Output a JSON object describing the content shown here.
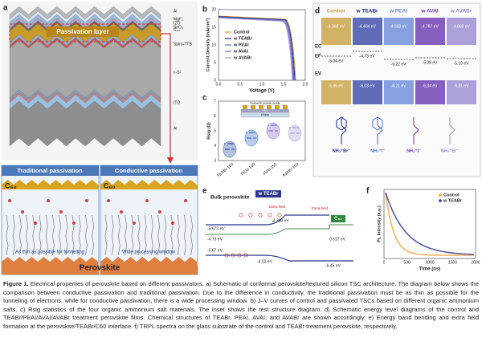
{
  "figure": {
    "panel_labels": [
      "a",
      "b",
      "c",
      "d",
      "e",
      "f"
    ],
    "a": {
      "stack_labels": [
        "Al",
        "MgF₂",
        "IZO",
        "SnO₂",
        "C₆₀",
        "Spiro-TTB",
        "c-Si",
        "ITO",
        "Al"
      ],
      "passivation": "Passivation layer",
      "traditional": "Traditional passivation",
      "conductive": "Conductive passivation",
      "c60_left": "C₆₀",
      "c60_right": "C₆₀",
      "thin": "As thin as possible for tunnelling",
      "wide": "Wide processing window",
      "perovskite": "Perovskite"
    },
    "b": {
      "ylabel": "Current Density (mA/cm²)",
      "xlabel": "Voltage (V)",
      "yticks": [
        "0",
        "5",
        "10",
        "15",
        "20"
      ],
      "xticks": [
        "0.0",
        "0.5",
        "1.0",
        "1.5",
        "2.0"
      ],
      "legend": [
        {
          "name": "Control",
          "color": "#d4a017"
        },
        {
          "name": "w TEABr",
          "color": "#1f2a8c"
        },
        {
          "name": "w PEAI",
          "color": "#4a6fd0"
        },
        {
          "name": "w AVAI",
          "color": "#7b5cc4"
        },
        {
          "name": "w AVABr",
          "color": "#a99ad8"
        }
      ]
    },
    "c": {
      "ylabel": "Rsig (Ω)",
      "yticks": [
        "3",
        "4",
        "5",
        "6",
        "7"
      ],
      "categories": [
        "TEABr-100",
        "PEAI-100",
        "AVAI-150",
        "AVABr-150"
      ],
      "inset": [
        "TEABr/PEAI/AVAI/AVABr",
        "ITO",
        "Glass"
      ]
    },
    "d": {
      "columns": [
        "Control",
        "w TEABr",
        "w PEAI",
        "w AVAI",
        "w AVABr"
      ],
      "ec": [
        "-4.368 eV",
        "-4.404 eV",
        "-4.583 eV",
        "-4.787 eV",
        "-4.668 eV"
      ],
      "ef": [
        "-5.04 eV",
        "-4.73 eV",
        "-5.22 eV",
        "-5.08 eV",
        "-5.10 eV"
      ],
      "ev": [
        "-5.96 eV",
        "-6.03 eV",
        "-6.21 eV",
        "-6.34 eV",
        "-6.31 eV"
      ],
      "levels": [
        "EC",
        "EF",
        "EV"
      ],
      "salts": [
        "NH₃⁺Br⁻",
        "NH₃⁺I⁻",
        "NH₃⁺I⁻",
        "NH₃⁺Br⁻"
      ]
    },
    "e": {
      "bulk": "Bulk perovskite",
      "teabr": "w TEABr",
      "c60": "C₆₀",
      "field1": "Extra field",
      "field2": "Extra field",
      "levels": [
        "-5.673 eV",
        "-4.73 eV",
        "-4.360 eV",
        "0.617 eV",
        "-5.67 eV",
        "-6.03 eV",
        "-6.45 eV"
      ]
    },
    "f": {
      "ylabel": "PL Intensity (a.u.)",
      "xlabel": "Time (ns)",
      "xticks": [
        "0",
        "500",
        "1000",
        "1500",
        "2000"
      ],
      "legend": [
        {
          "name": "Control",
          "color": "#f0a030"
        },
        {
          "name": "w TEABr",
          "color": "#2a3590"
        }
      ]
    },
    "caption": {
      "label": "Figure 1.",
      "text": "Electrical properties of perovskite based on different passivators. a) Schematic of conformal perovskite/textured silicon TSC architecture. The diagram below shows the comparison between conductive passivation and traditional passivation. Due to the difference in conductivity, the traditional passivation must be as thin as possible for the tunneling of electrons, while for conductive passivation, there is a wide processing window. b) J–V curves of control and passivated TSCs based on different organic ammonium salts. c) Rsig statistics of the four organic ammonium salt materials. The inset shows the test structure diagram. d) Schematic energy level diagrams of the control and TEABr/PEAI/AVAI/AVABr treatment perovskite films. Chemical structures of TEABr, PEAI, AVAI, and AVABr are shown accordingly. e) Energy band bending and extra field formation at the perovskite/TEABr/C60 interface. f) TRPL spectra on the glass substrate of the control and TEABr treatment perovskite, respectively."
    }
  }
}
